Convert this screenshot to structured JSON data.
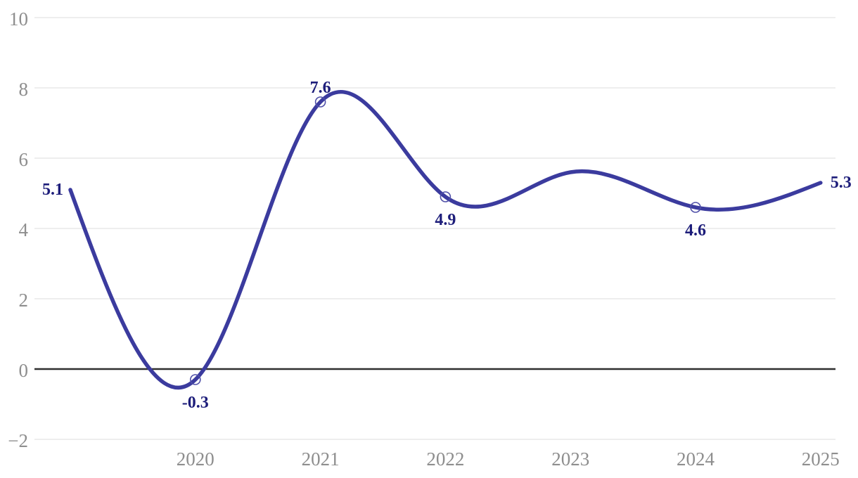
{
  "chart_data": {
    "type": "line",
    "title": "",
    "xlabel": "",
    "ylabel": "",
    "curve": "natural-cubic-spline",
    "grid": "horizontal-only",
    "legend": "none",
    "zero_baseline": true,
    "xlim": [
      2019,
      2025
    ],
    "ylim": [
      -2,
      10
    ],
    "x": [
      2019,
      2020,
      2021,
      2022,
      2023,
      2024,
      2025
    ],
    "values": [
      5.1,
      -0.3,
      7.6,
      4.9,
      5.6,
      4.6,
      5.3
    ],
    "points": [
      {
        "year": 2019,
        "value": 5.1,
        "label": "5.1",
        "marker": false,
        "label_position": "left"
      },
      {
        "year": 2020,
        "value": -0.3,
        "label": "-0.3",
        "marker": true,
        "label_position": "below"
      },
      {
        "year": 2021,
        "value": 7.6,
        "label": "7.6",
        "marker": true,
        "label_position": "above"
      },
      {
        "year": 2022,
        "value": 4.9,
        "label": "4.9",
        "marker": true,
        "label_position": "below"
      },
      {
        "year": 2023,
        "value": 5.6,
        "label": null,
        "marker": false,
        "label_position": null
      },
      {
        "year": 2024,
        "value": 4.6,
        "label": "4.6",
        "marker": true,
        "label_position": "below"
      },
      {
        "year": 2025,
        "value": 5.3,
        "label": "5.3",
        "marker": false,
        "label_position": "right"
      }
    ],
    "x_ticks": [
      {
        "value": 2020,
        "label": "2020"
      },
      {
        "value": 2021,
        "label": "2021"
      },
      {
        "value": 2022,
        "label": "2022"
      },
      {
        "value": 2023,
        "label": "2023"
      },
      {
        "value": 2024,
        "label": "2024"
      },
      {
        "value": 2025,
        "label": "2025"
      }
    ],
    "y_ticks": [
      {
        "value": 10,
        "label": "10"
      },
      {
        "value": 8,
        "label": "8"
      },
      {
        "value": 6,
        "label": "6"
      },
      {
        "value": 4,
        "label": "4"
      },
      {
        "value": 2,
        "label": "2"
      },
      {
        "value": 0,
        "label": "0"
      },
      {
        "value": -2,
        "label": "−2"
      }
    ]
  },
  "colors": {
    "background": "#ffffff",
    "line": "#3b3b9e",
    "marker_stroke": "#4f4fa8",
    "data_label": "#1d1d7a",
    "tick_label": "#8e8e8e",
    "gridline": "#e4e4e4",
    "zero_line": "#2f2f2f"
  }
}
